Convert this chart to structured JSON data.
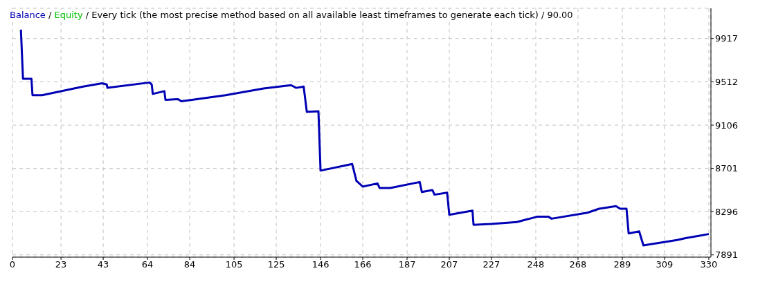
{
  "chart_data": {
    "type": "line",
    "title": "Every tick (the most precise method based on all available least timeframes to generate each tick) / 90.00",
    "x": [
      4,
      5,
      9,
      9.5,
      14,
      33.5,
      42.5,
      44.7,
      45,
      65,
      66,
      66.5,
      72,
      72.5,
      78.5,
      80,
      85,
      101,
      119,
      132,
      134.5,
      138,
      139.5,
      145,
      146,
      161,
      163,
      166,
      173,
      174,
      179,
      193,
      194,
      199,
      200,
      206,
      207,
      218,
      218.5,
      227,
      239,
      248.5,
      254,
      255.5,
      272.5,
      278,
      286,
      288,
      291,
      292,
      297,
      299,
      315,
      319,
      330
    ],
    "series": [
      {
        "name": "Balance",
        "color": "#0000b4",
        "values": [
          10000,
          9540,
          9540,
          9386,
          9386,
          9467,
          9498,
          9486,
          9455,
          9505,
          9486,
          9398,
          9424,
          9343,
          9349,
          9330,
          9343,
          9386,
          9449,
          9480,
          9455,
          9467,
          9230,
          9236,
          8680,
          8742,
          8585,
          8530,
          8560,
          8517,
          8517,
          8573,
          8480,
          8498,
          8455,
          8473,
          8267,
          8305,
          8173,
          8180,
          8198,
          8248,
          8248,
          8230,
          8286,
          8323,
          8348,
          8323,
          8323,
          8092,
          8111,
          7980,
          8030,
          8048,
          8086
        ]
      },
      {
        "name": "Equity",
        "color": "#00c000",
        "values": [
          null,
          null,
          null,
          null,
          null,
          null,
          null,
          null,
          null,
          null,
          null,
          null,
          null,
          null,
          null,
          null,
          null,
          null,
          null,
          null,
          null,
          null,
          null,
          null,
          null,
          null,
          null,
          null,
          null,
          null,
          null,
          null,
          null,
          null,
          null,
          null,
          null,
          null,
          null,
          null,
          null,
          null,
          null,
          null,
          null,
          null,
          null,
          null,
          null,
          null,
          null,
          null,
          null,
          null,
          null
        ]
      }
    ],
    "xlim": [
      0,
      331
    ],
    "xticks": [
      0,
      23,
      43,
      64,
      84,
      105,
      125,
      146,
      166,
      187,
      207,
      227,
      248,
      268,
      289,
      309,
      330
    ],
    "ylim": [
      7870,
      10200
    ],
    "yticks": [
      7891,
      8296,
      8701,
      9106,
      9512,
      9917
    ],
    "annotations": [
      "/"
    ],
    "grid": true,
    "legend": "top left",
    "marker": "none",
    "line_style": "solid"
  }
}
